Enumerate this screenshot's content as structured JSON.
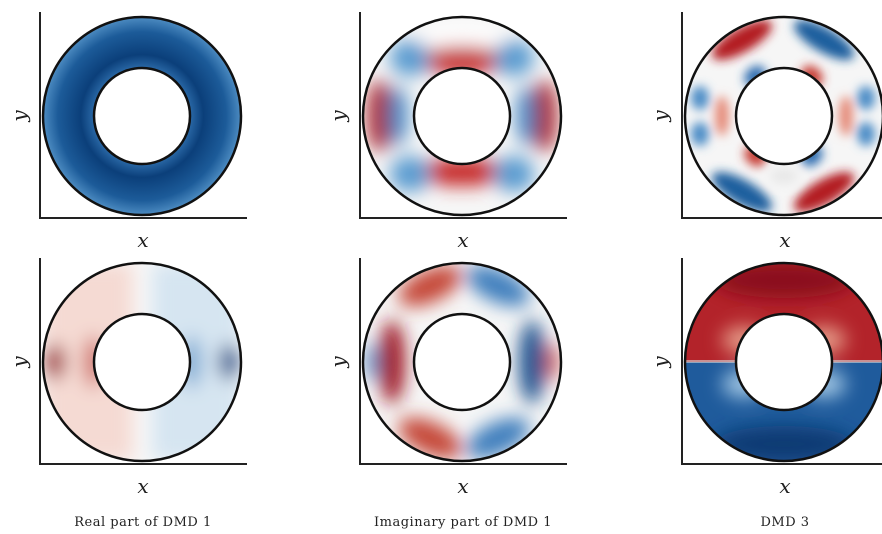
{
  "axis_labels": {
    "x": "x",
    "y": "y"
  },
  "captions": [
    "Real part of DMD 1",
    "Imaginary part of DMD 1",
    "DMD 3"
  ],
  "colormap": {
    "negative": "#08306b",
    "mid": "#f7f7f7",
    "positive": "#67000d"
  },
  "panels": [
    {
      "row": 0,
      "col": 0,
      "mode": "m0-uniform"
    },
    {
      "row": 0,
      "col": 1,
      "mode": "m2-imag"
    },
    {
      "row": 0,
      "col": 2,
      "mode": "m3"
    },
    {
      "row": 1,
      "col": 0,
      "mode": "m1-real"
    },
    {
      "row": 1,
      "col": 1,
      "mode": "m1-imag"
    },
    {
      "row": 1,
      "col": 2,
      "mode": "m1-vertical"
    }
  ]
}
